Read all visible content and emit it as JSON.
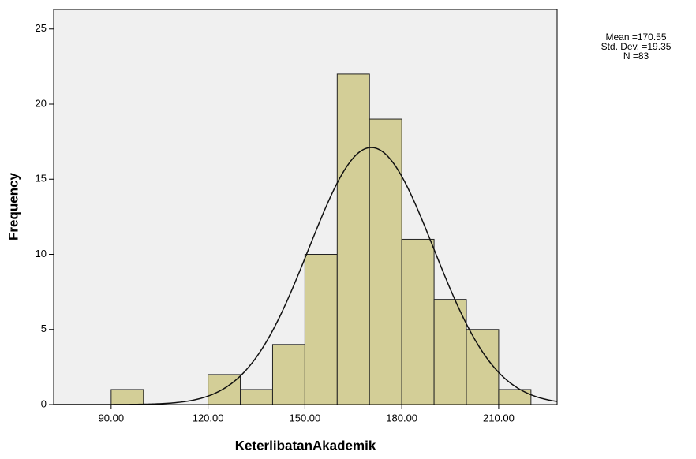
{
  "chart_data": {
    "type": "histogram",
    "x_label": "KeterlibatanAkademik",
    "y_label": "Frequency",
    "bins": [
      90,
      100,
      110,
      120,
      130,
      140,
      150,
      160,
      170,
      180,
      190,
      200,
      210,
      220
    ],
    "values": [
      1,
      0,
      0,
      2,
      1,
      4,
      10,
      22,
      19,
      11,
      7,
      5,
      1
    ],
    "color": "#d3ce97",
    "xlim": [
      72.2,
      228.1
    ],
    "xticks": [
      {
        "value": 90,
        "label": "90.00"
      },
      {
        "value": 120,
        "label": "120.00"
      },
      {
        "value": 150,
        "label": "150.00"
      },
      {
        "value": 180,
        "label": "180.00"
      },
      {
        "value": 210,
        "label": "210.00"
      }
    ],
    "ylim": [
      0,
      26.3
    ],
    "yticks": [
      0,
      5,
      10,
      15,
      20,
      25
    ],
    "normal_curve": {
      "mean": {
        "value": 170.55,
        "label": "Mean =170.55"
      },
      "std_dev": {
        "value": 19.35,
        "label": "Std. Dev. =19.35"
      },
      "n": {
        "value": 83,
        "label": "N =83"
      }
    }
  }
}
